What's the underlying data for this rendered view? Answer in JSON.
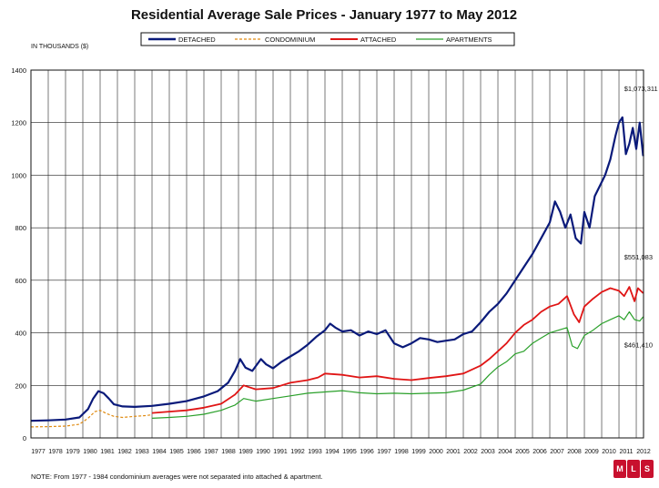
{
  "chart_data": {
    "type": "line",
    "title": "Residential Average Sale Prices  -  January 1977 to May 2012",
    "ylabel": "IN THOUSANDS ($)",
    "xlabel": "",
    "ylim": [
      0,
      1400
    ],
    "yticks": [
      "0",
      "200",
      "400",
      "600",
      "800",
      "1000",
      "1200",
      "1400"
    ],
    "xlim": [
      1977,
      2012.42
    ],
    "xticks": [
      "1977",
      "1978",
      "1979",
      "1980",
      "1981",
      "1982",
      "1983",
      "1984",
      "1985",
      "1986",
      "1987",
      "1988",
      "1989",
      "1990",
      "1991",
      "1992",
      "1993",
      "1994",
      "1995",
      "1996",
      "1997",
      "1998",
      "1999",
      "2000",
      "2001",
      "2002",
      "2003",
      "2004",
      "2005",
      "2006",
      "2007",
      "2008",
      "2009",
      "2010",
      "2011",
      "2012"
    ],
    "grid": true,
    "legend_position": "top",
    "series": [
      {
        "name": "DETACHED",
        "color": "#0a1a7a",
        "style": "solid",
        "x": [
          1977,
          1978,
          1979,
          1979.8,
          1980.3,
          1980.6,
          1980.9,
          1981.2,
          1981.5,
          1981.8,
          1982.3,
          1983,
          1984,
          1985,
          1986,
          1987,
          1987.8,
          1988.4,
          1988.8,
          1989.1,
          1989.4,
          1989.8,
          1990.3,
          1990.6,
          1991,
          1991.5,
          1992,
          1992.5,
          1993,
          1993.5,
          1994,
          1994.3,
          1994.6,
          1995,
          1995.5,
          1996,
          1996.5,
          1997,
          1997.5,
          1998,
          1998.5,
          1999,
          1999.5,
          2000,
          2000.5,
          2001,
          2001.5,
          2002,
          2002.5,
          2003,
          2003.5,
          2004,
          2004.5,
          2005,
          2005.5,
          2006,
          2006.5,
          2007,
          2007.3,
          2007.6,
          2007.9,
          2008.2,
          2008.5,
          2008.8,
          2009,
          2009.3,
          2009.6,
          2009.9,
          2010.2,
          2010.5,
          2010.8,
          2011,
          2011.2,
          2011.4,
          2011.6,
          2011.8,
          2012,
          2012.2,
          2012.4
        ],
        "y": [
          65,
          67,
          70,
          78,
          110,
          150,
          178,
          170,
          150,
          128,
          120,
          118,
          122,
          130,
          140,
          158,
          178,
          210,
          255,
          300,
          268,
          255,
          300,
          280,
          265,
          290,
          310,
          330,
          355,
          385,
          410,
          435,
          420,
          405,
          410,
          390,
          405,
          395,
          410,
          360,
          345,
          360,
          380,
          375,
          365,
          370,
          375,
          395,
          405,
          440,
          480,
          510,
          550,
          600,
          650,
          700,
          760,
          820,
          900,
          860,
          800,
          850,
          760,
          740,
          860,
          800,
          920,
          960,
          1000,
          1060,
          1150,
          1200,
          1220,
          1080,
          1120,
          1180,
          1100,
          1200,
          1073
        ]
      },
      {
        "name": "CONDOMINIUM",
        "color": "#e08a10",
        "style": "dashed",
        "x": [
          1977,
          1978,
          1979,
          1979.8,
          1980.3,
          1980.7,
          1981,
          1981.4,
          1981.8,
          1982.3,
          1983,
          1983.6,
          1984
        ],
        "y": [
          42,
          43,
          45,
          52,
          75,
          100,
          105,
          92,
          82,
          78,
          82,
          85,
          88
        ]
      },
      {
        "name": "ATTACHED",
        "color": "#e01515",
        "style": "solid",
        "x": [
          1984,
          1985,
          1986,
          1987,
          1988,
          1988.8,
          1989.3,
          1990,
          1991,
          1992,
          1993,
          1993.6,
          1994,
          1995,
          1996,
          1997,
          1998,
          1999,
          2000,
          2001,
          2002,
          2003,
          2003.5,
          2004,
          2004.5,
          2005,
          2005.5,
          2006,
          2006.5,
          2007,
          2007.5,
          2008,
          2008.4,
          2008.7,
          2009,
          2009.5,
          2010,
          2010.5,
          2011,
          2011.3,
          2011.6,
          2011.9,
          2012.1,
          2012.4
        ],
        "y": [
          95,
          100,
          105,
          115,
          130,
          165,
          200,
          185,
          190,
          210,
          220,
          230,
          245,
          240,
          230,
          235,
          225,
          220,
          228,
          235,
          245,
          275,
          300,
          330,
          360,
          400,
          430,
          450,
          480,
          500,
          510,
          540,
          470,
          440,
          500,
          530,
          555,
          570,
          560,
          540,
          575,
          520,
          570,
          551
        ]
      },
      {
        "name": "APARTMENTS",
        "color": "#2aa02a",
        "style": "solid",
        "x": [
          1984,
          1985,
          1986,
          1987,
          1988,
          1988.8,
          1989.3,
          1990,
          1991,
          1992,
          1993,
          1994,
          1995,
          1996,
          1997,
          1998,
          1999,
          2000,
          2001,
          2002,
          2003,
          2003.5,
          2004,
          2004.5,
          2005,
          2005.5,
          2006,
          2006.5,
          2007,
          2007.5,
          2008,
          2008.3,
          2008.6,
          2009,
          2009.5,
          2010,
          2010.5,
          2011,
          2011.3,
          2011.6,
          2011.9,
          2012.2,
          2012.4
        ],
        "y": [
          75,
          78,
          82,
          90,
          105,
          125,
          150,
          140,
          150,
          160,
          170,
          175,
          180,
          172,
          168,
          170,
          168,
          170,
          172,
          182,
          205,
          240,
          270,
          290,
          320,
          330,
          360,
          380,
          400,
          410,
          420,
          350,
          340,
          390,
          410,
          435,
          450,
          465,
          450,
          480,
          450,
          445,
          461
        ]
      }
    ],
    "annotations": [
      {
        "text": "$1,073,311",
        "x": 2011.3,
        "y": 1320
      },
      {
        "text": "$551,083",
        "x": 2011.3,
        "y": 680
      },
      {
        "text": "$461,410",
        "x": 2011.3,
        "y": 345
      }
    ],
    "note": "NOTE:  From 1977 - 1984 condominium averages were not separated into attached & apartment."
  },
  "logo": {
    "letters": [
      "M",
      "L",
      "S"
    ],
    "color": "#c8102e"
  }
}
